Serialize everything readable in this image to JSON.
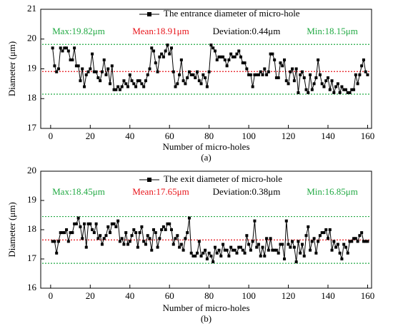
{
  "chart_data": [
    {
      "type": "line",
      "xlabel": "Number of micro-holes",
      "ylabel": "Diameter (μm)",
      "caption": "(a)",
      "xlim": [
        -5,
        162
      ],
      "xticks": [
        0,
        20,
        40,
        60,
        80,
        100,
        120,
        140,
        160
      ],
      "ylim": [
        17,
        21
      ],
      "yticks": [
        17,
        18,
        19,
        20,
        21
      ],
      "stats": [
        {
          "text": "Max:19.82μm",
          "value": 19.82,
          "color": "#22aa44"
        },
        {
          "text": "Mean:18.91μm",
          "value": 18.91,
          "color": "#e8151b"
        },
        {
          "text": "Deviation:0.44μm",
          "color": "#000000"
        },
        {
          "text": "Min:18.15μm",
          "value": 18.15,
          "color": "#22aa44"
        }
      ],
      "series": [
        {
          "name": "The entrance diameter of micro-hole",
          "color": "#000000",
          "x": [
            1,
            2,
            3,
            4,
            5,
            6,
            7,
            8,
            9,
            10,
            11,
            12,
            13,
            14,
            15,
            16,
            17,
            18,
            19,
            20,
            21,
            22,
            23,
            24,
            25,
            26,
            27,
            28,
            29,
            30,
            31,
            32,
            33,
            34,
            35,
            36,
            37,
            38,
            39,
            40,
            41,
            42,
            43,
            44,
            45,
            46,
            47,
            48,
            49,
            50,
            51,
            52,
            53,
            54,
            55,
            56,
            57,
            58,
            59,
            60,
            61,
            62,
            63,
            64,
            65,
            66,
            67,
            68,
            69,
            70,
            71,
            72,
            73,
            74,
            75,
            76,
            77,
            78,
            79,
            80,
            81,
            82,
            83,
            84,
            85,
            86,
            87,
            88,
            89,
            90,
            91,
            92,
            93,
            94,
            95,
            96,
            97,
            98,
            99,
            100,
            101,
            102,
            103,
            104,
            105,
            106,
            107,
            108,
            109,
            110,
            111,
            112,
            113,
            114,
            115,
            116,
            117,
            118,
            119,
            120,
            121,
            122,
            123,
            124,
            125,
            126,
            127,
            128,
            129,
            130,
            131,
            132,
            133,
            134,
            135,
            136,
            137,
            138,
            139,
            140,
            141,
            142,
            143,
            144,
            145,
            146,
            147,
            148,
            149,
            150,
            151,
            152,
            153,
            154,
            155,
            156,
            157,
            158,
            159,
            160
          ],
          "values": [
            19.7,
            19.1,
            18.9,
            19.0,
            19.7,
            19.6,
            19.7,
            19.7,
            19.6,
            19.3,
            19.3,
            19.7,
            19.1,
            19.1,
            18.6,
            19.0,
            18.4,
            18.8,
            18.9,
            19.0,
            19.5,
            18.9,
            18.9,
            18.7,
            18.6,
            18.9,
            19.3,
            18.8,
            19.0,
            18.5,
            19.1,
            18.3,
            18.3,
            18.4,
            18.3,
            18.4,
            18.6,
            18.5,
            18.4,
            18.8,
            18.6,
            18.5,
            18.4,
            18.6,
            18.6,
            18.5,
            18.4,
            18.6,
            18.8,
            19.0,
            19.7,
            19.6,
            19.2,
            18.9,
            19.4,
            19.5,
            19.4,
            19.6,
            19.8,
            19.5,
            19.7,
            18.9,
            18.4,
            18.5,
            18.8,
            19.3,
            18.6,
            18.5,
            18.7,
            18.9,
            18.8,
            18.8,
            18.7,
            18.9,
            18.6,
            18.5,
            18.8,
            18.7,
            18.4,
            18.9,
            19.8,
            19.7,
            19.6,
            19.3,
            19.4,
            19.4,
            19.4,
            19.3,
            19.1,
            19.3,
            19.5,
            19.4,
            19.4,
            19.5,
            19.6,
            19.4,
            19.2,
            19.2,
            19.0,
            18.8,
            18.8,
            18.4,
            18.8,
            18.8,
            18.8,
            18.9,
            18.8,
            19.0,
            18.8,
            18.9,
            19.5,
            19.5,
            19.3,
            18.7,
            18.7,
            19.2,
            19.1,
            19.3,
            18.6,
            18.5,
            18.9,
            19.0,
            18.6,
            19.0,
            18.2,
            18.8,
            18.9,
            18.7,
            18.3,
            18.2,
            18.8,
            18.3,
            18.5,
            18.7,
            19.3,
            18.8,
            18.5,
            18.4,
            18.6,
            18.7,
            18.3,
            18.6,
            18.2,
            18.4,
            18.5,
            18.2,
            18.4,
            18.3,
            18.3,
            18.2,
            18.2,
            18.3,
            18.3,
            18.8,
            18.5,
            18.8,
            19.1,
            19.3,
            18.9,
            18.8
          ]
        }
      ]
    },
    {
      "type": "line",
      "xlabel": "Number of micro-holes",
      "ylabel": "Diameter (μm)",
      "caption": "(b)",
      "xlim": [
        -5,
        162
      ],
      "xticks": [
        0,
        20,
        40,
        60,
        80,
        100,
        120,
        140,
        160
      ],
      "ylim": [
        16,
        20
      ],
      "yticks": [
        16,
        17,
        18,
        19,
        20
      ],
      "stats": [
        {
          "text": "Max:18.45μm",
          "value": 18.45,
          "color": "#22aa44"
        },
        {
          "text": "Mean:17.65μm",
          "value": 17.65,
          "color": "#e8151b"
        },
        {
          "text": "Deviation:0.38μm",
          "color": "#000000"
        },
        {
          "text": "Min:16.85μm",
          "value": 16.85,
          "color": "#22aa44"
        }
      ],
      "series": [
        {
          "name": "The exit diameter of micro-hole",
          "color": "#000000",
          "x": [
            1,
            2,
            3,
            4,
            5,
            6,
            7,
            8,
            9,
            10,
            11,
            12,
            13,
            14,
            15,
            16,
            17,
            18,
            19,
            20,
            21,
            22,
            23,
            24,
            25,
            26,
            27,
            28,
            29,
            30,
            31,
            32,
            33,
            34,
            35,
            36,
            37,
            38,
            39,
            40,
            41,
            42,
            43,
            44,
            45,
            46,
            47,
            48,
            49,
            50,
            51,
            52,
            53,
            54,
            55,
            56,
            57,
            58,
            59,
            60,
            61,
            62,
            63,
            64,
            65,
            66,
            67,
            68,
            69,
            70,
            71,
            72,
            73,
            74,
            75,
            76,
            77,
            78,
            79,
            80,
            81,
            82,
            83,
            84,
            85,
            86,
            87,
            88,
            89,
            90,
            91,
            92,
            93,
            94,
            95,
            96,
            97,
            98,
            99,
            100,
            101,
            102,
            103,
            104,
            105,
            106,
            107,
            108,
            109,
            110,
            111,
            112,
            113,
            114,
            115,
            116,
            117,
            118,
            119,
            120,
            121,
            122,
            123,
            124,
            125,
            126,
            127,
            128,
            129,
            130,
            131,
            132,
            133,
            134,
            135,
            136,
            137,
            138,
            139,
            140,
            141,
            142,
            143,
            144,
            145,
            146,
            147,
            148,
            149,
            150,
            151,
            152,
            153,
            154,
            155,
            156,
            157,
            158,
            159,
            160
          ],
          "values": [
            17.6,
            17.6,
            17.2,
            17.6,
            17.9,
            17.9,
            17.9,
            18.0,
            17.6,
            17.9,
            17.9,
            18.2,
            18.2,
            18.4,
            18.1,
            17.7,
            18.2,
            17.4,
            18.2,
            18.2,
            18.0,
            17.9,
            18.2,
            17.7,
            17.8,
            17.5,
            17.7,
            17.8,
            18.1,
            17.9,
            18.2,
            18.2,
            18.1,
            18.3,
            17.6,
            17.7,
            17.5,
            17.9,
            17.5,
            17.6,
            17.8,
            18.0,
            17.9,
            17.4,
            17.9,
            18.1,
            17.6,
            17.5,
            17.8,
            17.7,
            17.3,
            18.0,
            17.9,
            17.4,
            17.7,
            18.0,
            18.1,
            18.0,
            18.2,
            18.2,
            18.0,
            17.5,
            17.7,
            17.8,
            17.4,
            17.5,
            17.3,
            17.7,
            17.9,
            18.4,
            17.2,
            17.1,
            17.1,
            17.2,
            17.6,
            17.1,
            17.2,
            17.3,
            17.0,
            17.2,
            17.1,
            16.9,
            17.4,
            17.2,
            17.3,
            17.1,
            17.5,
            17.3,
            17.3,
            17.1,
            17.4,
            17.3,
            17.3,
            17.2,
            17.4,
            17.4,
            17.3,
            17.2,
            17.8,
            17.5,
            17.3,
            17.6,
            18.3,
            17.4,
            17.5,
            17.1,
            17.4,
            17.1,
            17.7,
            17.3,
            17.7,
            17.3,
            17.3,
            17.3,
            17.2,
            17.5,
            17.5,
            17.0,
            18.3,
            17.5,
            17.4,
            17.6,
            17.4,
            16.9,
            17.6,
            17.2,
            17.5,
            17.1,
            17.8,
            18.1,
            17.3,
            17.6,
            17.7,
            17.2,
            17.6,
            17.8,
            17.9,
            17.9,
            18.0,
            17.7,
            18.0,
            17.3,
            17.6,
            17.4,
            17.5,
            17.2,
            17.0,
            17.5,
            17.4,
            17.2,
            17.6,
            17.6,
            17.7,
            17.7,
            17.6,
            17.8,
            17.9,
            17.6,
            17.6,
            17.6
          ]
        }
      ]
    }
  ]
}
